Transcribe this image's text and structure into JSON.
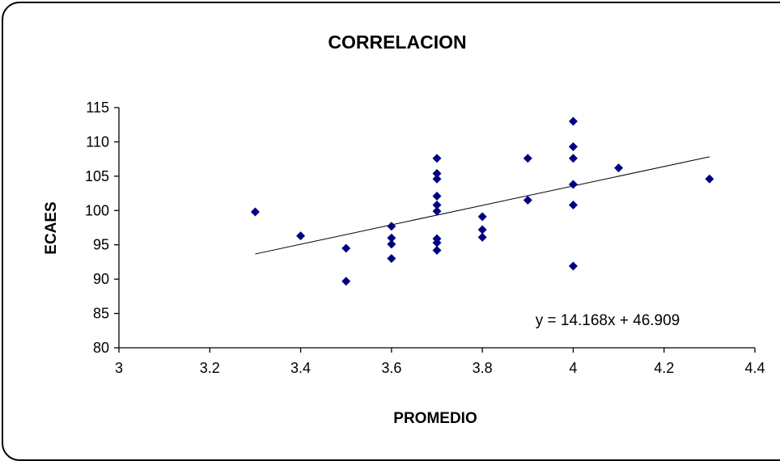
{
  "chart_data": {
    "type": "scatter",
    "title": "CORRELACION",
    "xlabel": "PROMEDIO",
    "ylabel": "ECAES",
    "xlim": [
      3,
      4.4
    ],
    "ylim": [
      80,
      115
    ],
    "x_ticks": [
      3,
      3.2,
      3.4,
      3.6,
      3.8,
      4,
      4.2,
      4.4
    ],
    "x_tick_labels": [
      "3",
      "3.2",
      "3.4",
      "3.6",
      "3.8",
      "4",
      "4.2",
      "4.4"
    ],
    "y_ticks": [
      80,
      85,
      90,
      95,
      100,
      105,
      110,
      115
    ],
    "y_tick_labels": [
      "80",
      "85",
      "90",
      "95",
      "100",
      "105",
      "110",
      "115"
    ],
    "grid": false,
    "marker_color": "#000080",
    "series": [
      {
        "points": [
          [
            3.3,
            99.8
          ],
          [
            3.4,
            96.3
          ],
          [
            3.5,
            94.5
          ],
          [
            3.5,
            89.7
          ],
          [
            3.6,
            97.7
          ],
          [
            3.6,
            96.0
          ],
          [
            3.6,
            95.1
          ],
          [
            3.6,
            93.0
          ],
          [
            3.7,
            107.6
          ],
          [
            3.7,
            105.4
          ],
          [
            3.7,
            104.6
          ],
          [
            3.7,
            102.1
          ],
          [
            3.7,
            100.8
          ],
          [
            3.7,
            99.9
          ],
          [
            3.7,
            95.9
          ],
          [
            3.7,
            95.3
          ],
          [
            3.7,
            94.2
          ],
          [
            3.8,
            99.1
          ],
          [
            3.8,
            97.2
          ],
          [
            3.8,
            96.1
          ],
          [
            3.9,
            107.6
          ],
          [
            3.9,
            101.5
          ],
          [
            4.0,
            113.0
          ],
          [
            4.0,
            109.3
          ],
          [
            4.0,
            107.6
          ],
          [
            4.0,
            103.8
          ],
          [
            4.0,
            100.8
          ],
          [
            4.0,
            91.9
          ],
          [
            4.1,
            106.2
          ],
          [
            4.3,
            104.6
          ]
        ]
      }
    ],
    "trendline": {
      "slope": 14.168,
      "intercept": 46.909,
      "x_range": [
        3.3,
        4.3
      ],
      "equation_label": "y = 14.168x + 46.909"
    }
  }
}
